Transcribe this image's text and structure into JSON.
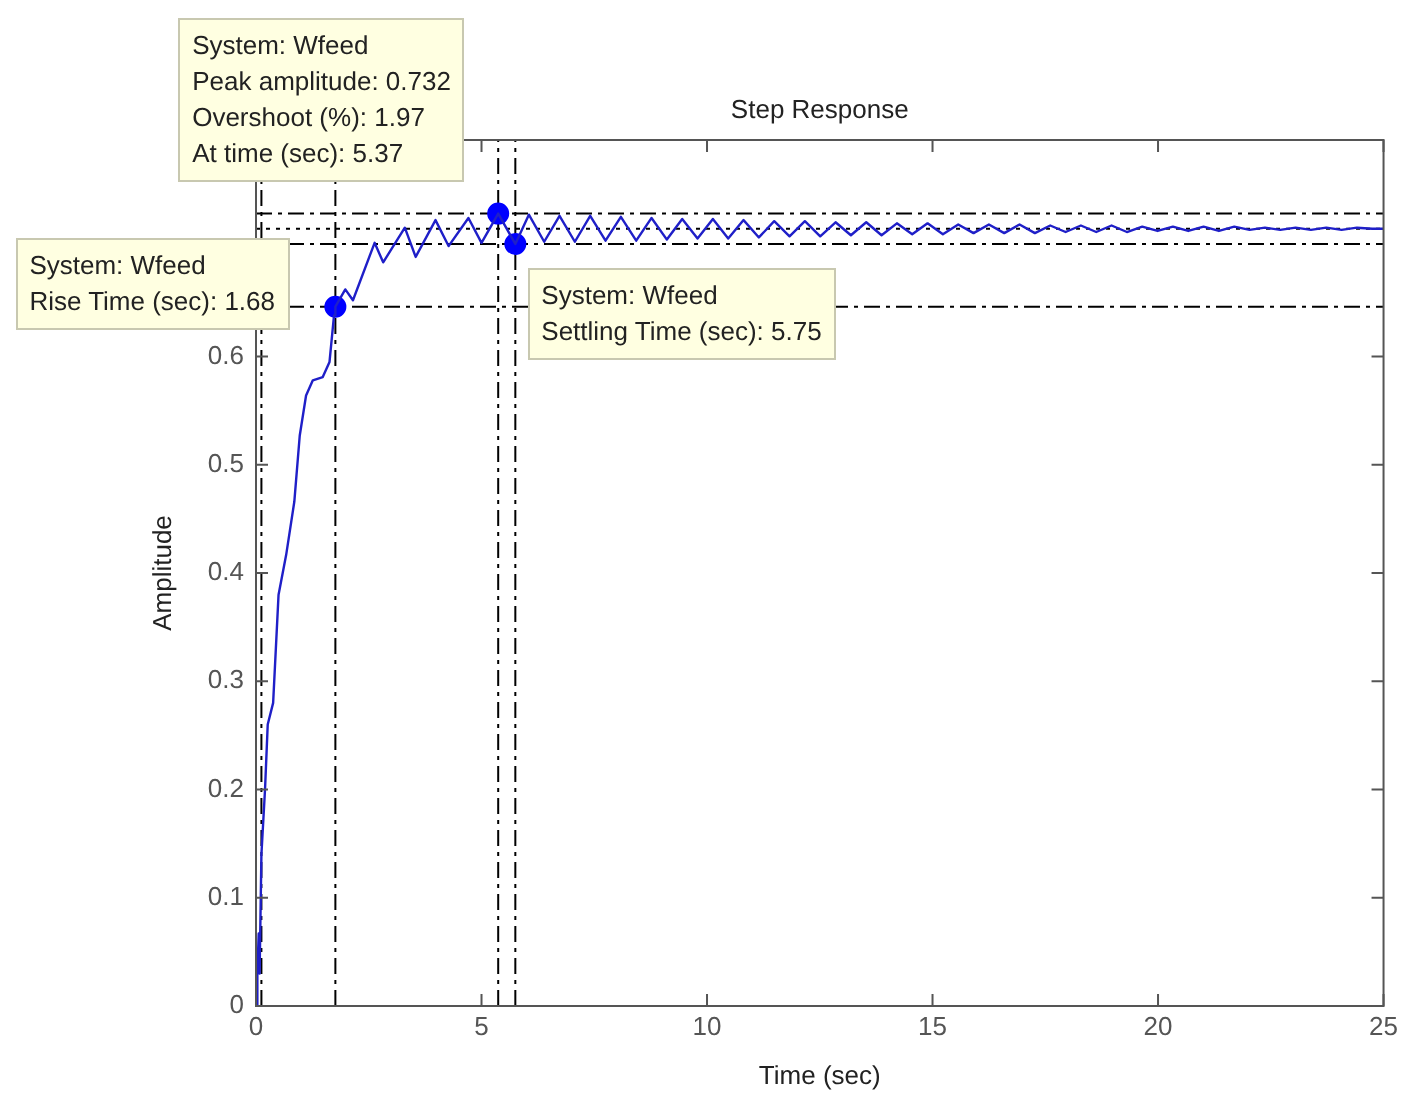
{
  "chart_data": {
    "type": "line",
    "title": "Step Response",
    "xlabel": "Time (sec)",
    "ylabel": "Amplitude",
    "xlim": [
      0,
      25
    ],
    "xticks": [
      0,
      5,
      10,
      15,
      20,
      25
    ],
    "ylim": [
      0,
      0.8
    ],
    "yticks": [
      0,
      0.1,
      0.2,
      0.3,
      0.4,
      0.5,
      0.6
    ],
    "grid": false,
    "legend": false,
    "series": [
      {
        "color": "#1f1fc8",
        "marker": "none",
        "line_style": "solid",
        "x": [
          0,
          0.03,
          0.06,
          0.08,
          0.12,
          0.2,
          0.26,
          0.38,
          0.5,
          0.67,
          0.85,
          0.97,
          1.11,
          1.26,
          1.48,
          1.63,
          1.73,
          1.76,
          1.98,
          2.15,
          2.63,
          2.82,
          3.3,
          3.54,
          3.98,
          4.27,
          4.71,
          5.0,
          5.37,
          5.75,
          6.05,
          6.39,
          6.73,
          7.07,
          7.41,
          7.75,
          8.09,
          8.43,
          8.77,
          9.11,
          9.45,
          9.79,
          10.13,
          10.47,
          10.81,
          11.15,
          11.49,
          11.83,
          12.17,
          12.51,
          12.85,
          13.19,
          13.53,
          13.87,
          14.21,
          14.55,
          14.89,
          15.23,
          15.57,
          15.91,
          16.25,
          16.59,
          16.93,
          17.27,
          17.61,
          17.95,
          18.29,
          18.63,
          18.97,
          19.31,
          19.65,
          19.99,
          20.33,
          20.67,
          21.01,
          21.35,
          21.69,
          22.03,
          22.37,
          22.71,
          23.05,
          23.39,
          23.73,
          24.07,
          24.41,
          24.75,
          25
        ],
        "values": [
          0,
          0.03,
          0.067,
          0.03,
          0.14,
          0.2,
          0.26,
          0.28,
          0.38,
          0.417,
          0.466,
          0.527,
          0.564,
          0.578,
          0.581,
          0.595,
          0.638,
          0.646,
          0.662,
          0.652,
          0.705,
          0.687,
          0.719,
          0.692,
          0.726,
          0.702,
          0.728,
          0.705,
          0.732,
          0.704,
          0.731,
          0.706,
          0.73,
          0.706,
          0.73,
          0.707,
          0.729,
          0.707,
          0.728,
          0.708,
          0.727,
          0.709,
          0.727,
          0.709,
          0.726,
          0.71,
          0.725,
          0.711,
          0.725,
          0.711,
          0.724,
          0.712,
          0.724,
          0.712,
          0.723,
          0.713,
          0.723,
          0.713,
          0.722,
          0.714,
          0.722,
          0.714,
          0.722,
          0.714,
          0.721,
          0.715,
          0.721,
          0.715,
          0.721,
          0.715,
          0.72,
          0.716,
          0.72,
          0.716,
          0.72,
          0.716,
          0.72,
          0.717,
          0.719,
          0.717,
          0.719,
          0.717,
          0.719,
          0.717,
          0.719,
          0.718,
          0.718
        ]
      },
      {
        "type": "scatter",
        "color": "#0000ff",
        "marker": "circle",
        "x": [
          1.76,
          5.37,
          5.75
        ],
        "values": [
          0.646,
          0.732,
          0.704
        ]
      }
    ],
    "ref_lines": [
      {
        "axis": "y",
        "value": 0.732,
        "color": "#000000",
        "line_style": "dashed"
      },
      {
        "axis": "y",
        "value": 0.704,
        "color": "#000000",
        "line_style": "dashed"
      },
      {
        "axis": "y",
        "value": 0.718,
        "color": "#000000",
        "line_style": "dotted"
      },
      {
        "axis": "y",
        "value": 0.646,
        "color": "#000000",
        "line_style": "dashed"
      },
      {
        "axis": "x",
        "value": 0.12,
        "color": "#000000",
        "line_style": "dashed"
      },
      {
        "axis": "x",
        "value": 1.76,
        "color": "#000000",
        "line_style": "dashed"
      },
      {
        "axis": "x",
        "value": 5.37,
        "color": "#000000",
        "line_style": "dashed"
      },
      {
        "axis": "x",
        "value": 5.75,
        "color": "#000000",
        "line_style": "dashed"
      }
    ],
    "annotations": [
      {
        "text": "System: Wfeed\nRise Time (sec): 1.68",
        "x": 1.76,
        "y": 0.646
      },
      {
        "text": "System: Wfeed\nPeak amplitude: 0.732\nOvershoot (%): 1.97\nAt time (sec): 5.37",
        "x": 5.37,
        "y": 0.732
      },
      {
        "text": "System: Wfeed\nSettling Time (sec): 5.75",
        "x": 5.75,
        "y": 0.704
      }
    ]
  }
}
